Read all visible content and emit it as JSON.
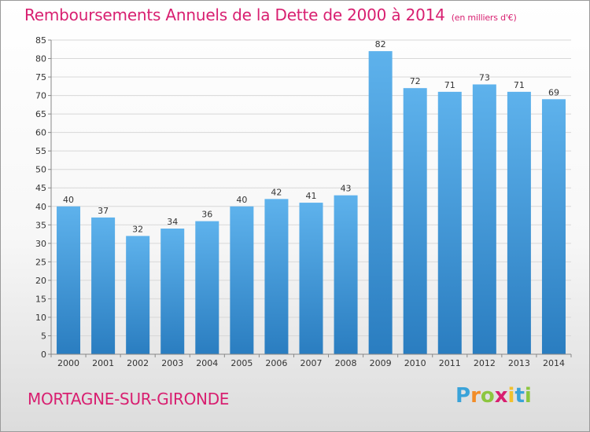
{
  "title": "Remboursements Annuels de la Dette de 2000 à 2014",
  "unit": "(en milliers d'€)",
  "commune": "MORTAGNE-SUR-GIRONDE",
  "logo": {
    "letters": [
      "P",
      "r",
      "o",
      "x",
      "i",
      "t",
      "i"
    ],
    "colors": [
      "#3aa3d9",
      "#f28c28",
      "#8cc63f",
      "#d81f70",
      "#f2c12e",
      "#3aa3d9",
      "#8cc63f"
    ]
  },
  "colors": {
    "title": "#d81f70",
    "bar_top": "#5eb2ec",
    "bar_bottom": "#2a7dc0",
    "grid": "#d8d8d8",
    "axis": "#888888",
    "text": "#333333"
  },
  "chart_data": {
    "type": "bar",
    "categories": [
      "2000",
      "2001",
      "2002",
      "2003",
      "2004",
      "2005",
      "2006",
      "2007",
      "2008",
      "2009",
      "2010",
      "2011",
      "2012",
      "2013",
      "2014"
    ],
    "values": [
      40,
      37,
      32,
      34,
      36,
      40,
      42,
      41,
      43,
      82,
      72,
      71,
      73,
      71,
      69
    ],
    "title": "Remboursements Annuels de la Dette de 2000 à 2014",
    "ylim": [
      0,
      85
    ],
    "yticks": [
      0,
      5,
      10,
      15,
      20,
      25,
      30,
      35,
      40,
      45,
      50,
      55,
      60,
      65,
      70,
      75,
      80,
      85
    ],
    "grid": true,
    "data_labels": true
  }
}
